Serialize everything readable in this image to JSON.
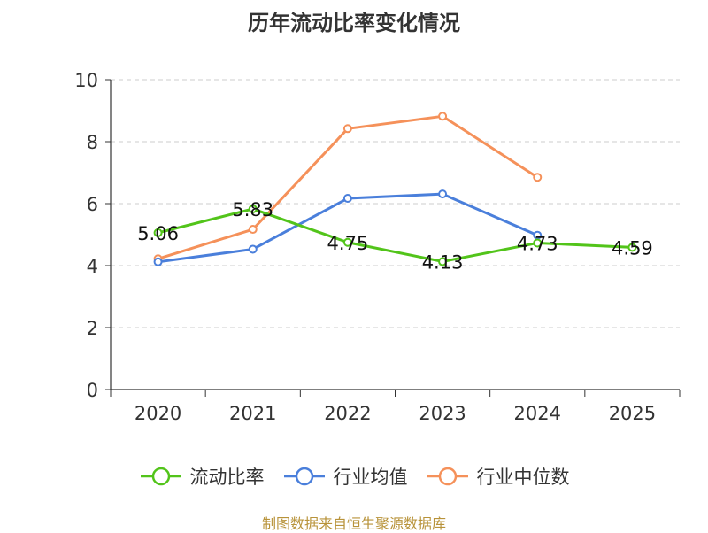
{
  "chart_data": {
    "type": "line",
    "title": "历年流动比率变化情况",
    "categories": [
      "2020",
      "2021",
      "2022",
      "2023",
      "2024",
      "2025"
    ],
    "ylim": [
      0,
      10
    ],
    "yticks": [
      0,
      2,
      4,
      6,
      8,
      10
    ],
    "grid": true,
    "legend_position": "bottom",
    "series": [
      {
        "name": "流动比率",
        "color": "#52c41a",
        "values": [
          5.06,
          5.83,
          4.75,
          4.13,
          4.73,
          4.59
        ],
        "labels": [
          "5.06",
          "5.83",
          "4.75",
          "4.13",
          "4.73",
          "4.59"
        ]
      },
      {
        "name": "行业均值",
        "color": "#4a7fdb",
        "values": [
          4.12,
          4.53,
          6.17,
          6.31,
          4.98,
          null
        ]
      },
      {
        "name": "行业中位数",
        "color": "#f5915a",
        "values": [
          4.22,
          5.17,
          8.42,
          8.82,
          6.85,
          null
        ]
      }
    ],
    "source": "制图数据来自恒生聚源数据库"
  }
}
